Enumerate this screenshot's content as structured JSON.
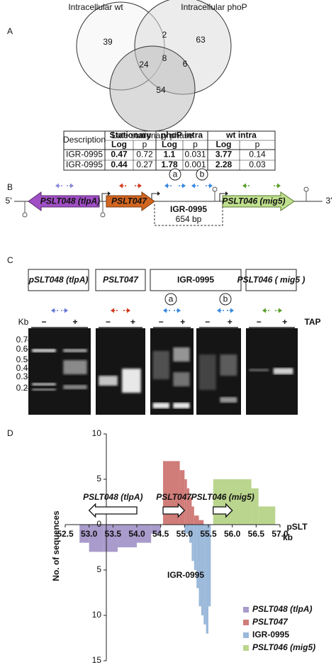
{
  "panel_labels": [
    "A",
    "B",
    "C",
    "D"
  ],
  "venn": {
    "sets": [
      "Intracellular wt",
      "Intracellular phoP",
      "Late stationary phase"
    ],
    "regions": [
      39,
      2,
      63,
      8,
      24,
      6,
      54
    ]
  },
  "table": {
    "header": [
      "Description",
      "Stationary",
      "phoP intra",
      "wt intra"
    ],
    "subheader": [
      "Log",
      "p",
      "Log",
      "p",
      "Log",
      "p"
    ],
    "rows": [
      [
        "IGR-0995",
        0.47,
        0.72,
        1.1,
        0.031,
        3.77,
        0.14
      ],
      [
        "IGR-0995",
        0.44,
        0.27,
        1.78,
        0.001,
        2.28,
        0.03
      ]
    ]
  },
  "gene_map": {
    "five_prime": "5'",
    "three_prime": "3'",
    "genes": [
      "PSLT048 (tlpA)",
      "PSLT047",
      "PSLT046 (mig5)"
    ],
    "region": "IGR-0995",
    "region_size": "654 bp",
    "sites": [
      "a",
      "b"
    ]
  },
  "gel": {
    "lanes": [
      "pSLT048 (tlpA)",
      "PSLT047",
      "IGR-0995",
      "PSLT046 ( mig5 )"
    ],
    "sites": [
      "a",
      "b"
    ],
    "size_unit": "Kb",
    "treatment": "TAP",
    "minus": "−",
    "plus": "+",
    "markers": [
      0.7,
      0.6,
      0.5,
      0.4,
      0.3,
      0.2
    ]
  },
  "chart_data": {
    "type": "histogram",
    "ylabel": "No. of sequences",
    "xlabel": "kb",
    "axis_title": "pSLT",
    "xlim": [
      52.5,
      57.0
    ],
    "xticks": [
      52.5,
      {
        "value": 53,
        "label": "53.0"
      },
      53.5,
      {
        "value": 54,
        "label": "54.0"
      },
      54.5,
      {
        "value": 55,
        "label": "55.0"
      },
      55.5,
      {
        "value": 56,
        "label": "56.0"
      },
      56.5,
      {
        "value": 57,
        "label": "57.0"
      }
    ],
    "ylim": [
      -15,
      10
    ],
    "yticks": [
      10,
      5,
      0,
      {
        "value": -5,
        "label": "5"
      },
      {
        "value": -10,
        "label": "10"
      },
      {
        "value": -15,
        "label": "15"
      }
    ],
    "series": [
      {
        "name": "PSLT048 (tlpA)",
        "color": "#a99bcb",
        "bins": [
          52.8,
          53.0,
          53.3,
          53.6,
          54.0,
          54.3,
          54.5
        ],
        "values": [
          -2,
          -3,
          -3,
          -2.5,
          -2,
          -1
        ]
      },
      {
        "name": "PSLT047",
        "color": "#d07c79",
        "bins": [
          54.55,
          54.9,
          55.0,
          55.05,
          55.1,
          55.15,
          55.2,
          55.3,
          55.4
        ],
        "values": [
          7,
          6,
          5,
          4,
          3,
          2,
          1,
          0.5
        ]
      },
      {
        "name": "IGR-0995",
        "color": "#9bb9da",
        "bins": [
          55.0,
          55.1,
          55.15,
          55.2,
          55.25,
          55.3,
          55.35,
          55.4,
          55.45,
          55.5,
          55.55
        ],
        "values": [
          -1,
          -2,
          -4,
          -5,
          -7,
          -9,
          -10,
          -11,
          -12,
          -9
        ]
      },
      {
        "name": "PSLT046 (mig5)",
        "color": "#bad58d",
        "bins": [
          55.6,
          56.4,
          56.55,
          56.9
        ],
        "values": [
          5,
          4,
          2
        ]
      }
    ],
    "genes": [
      {
        "name": "PSLT048 (tlpA)",
        "start": 53.0,
        "end": 54.0,
        "direction": "left"
      },
      {
        "name": "PSLT047",
        "start": 54.55,
        "end": 55.0,
        "direction": "right"
      },
      {
        "name": "PSLT046 (mig5)",
        "start": 55.6,
        "end": 56.0,
        "direction": "right"
      }
    ],
    "annotations": [
      "IGR-0995"
    ],
    "legend": "lower right"
  }
}
